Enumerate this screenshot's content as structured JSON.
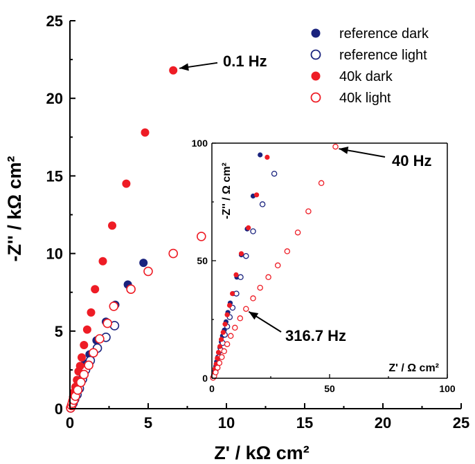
{
  "chart_data": [
    {
      "type": "scatter",
      "xlabel": "Z' / kΩ cm²",
      "ylabel": "-Z'' / kΩ cm²",
      "xlim": [
        0,
        25
      ],
      "ylim": [
        0,
        25
      ],
      "xticks": [
        "0",
        "5",
        "10",
        "15",
        "20",
        "25"
      ],
      "yticks": [
        "0",
        "5",
        "10",
        "15",
        "20",
        "25"
      ],
      "legend_position": "top-right",
      "series": [
        {
          "name": "reference dark",
          "marker": "filled-circle",
          "color": "#1a237e",
          "points": [
            [
              0.05,
              0.05
            ],
            [
              0.1,
              0.15
            ],
            [
              0.15,
              0.3
            ],
            [
              0.2,
              0.45
            ],
            [
              0.3,
              0.7
            ],
            [
              0.4,
              1.0
            ],
            [
              0.5,
              1.4
            ],
            [
              0.6,
              1.8
            ],
            [
              0.75,
              2.3
            ],
            [
              0.95,
              2.9
            ],
            [
              1.25,
              3.5
            ],
            [
              1.7,
              4.4
            ],
            [
              2.3,
              5.6
            ],
            [
              2.9,
              6.7
            ],
            [
              3.7,
              8.0
            ],
            [
              4.7,
              9.4
            ]
          ]
        },
        {
          "name": "reference light",
          "marker": "open-circle",
          "color": "#1a237e",
          "points": [
            [
              0.05,
              0.05
            ],
            [
              0.1,
              0.15
            ],
            [
              0.2,
              0.35
            ],
            [
              0.3,
              0.6
            ],
            [
              0.45,
              0.9
            ],
            [
              0.6,
              1.3
            ],
            [
              0.8,
              1.9
            ],
            [
              1.0,
              2.5
            ],
            [
              1.3,
              3.1
            ],
            [
              1.75,
              3.9
            ],
            [
              2.3,
              4.6
            ],
            [
              2.85,
              5.35
            ]
          ]
        },
        {
          "name": "40k dark",
          "marker": "filled-circle",
          "color": "#ee1c25",
          "points": [
            [
              0.05,
              0.1
            ],
            [
              0.1,
              0.3
            ],
            [
              0.15,
              0.5
            ],
            [
              0.2,
              0.75
            ],
            [
              0.25,
              1.05
            ],
            [
              0.35,
              1.4
            ],
            [
              0.45,
              1.85
            ],
            [
              0.55,
              2.4
            ],
            [
              0.65,
              2.75
            ],
            [
              0.75,
              3.3
            ],
            [
              0.9,
              4.1
            ],
            [
              1.1,
              5.1
            ],
            [
              1.35,
              6.2
            ],
            [
              1.6,
              7.7
            ],
            [
              2.1,
              9.5
            ],
            [
              2.7,
              11.8
            ],
            [
              3.6,
              14.5
            ],
            [
              4.8,
              17.8
            ],
            [
              6.6,
              21.8
            ]
          ]
        },
        {
          "name": "40k light",
          "marker": "open-circle",
          "color": "#ee1c25",
          "points": [
            [
              0.05,
              0.05
            ],
            [
              0.1,
              0.2
            ],
            [
              0.15,
              0.35
            ],
            [
              0.25,
              0.55
            ],
            [
              0.35,
              0.8
            ],
            [
              0.5,
              1.2
            ],
            [
              0.7,
              1.7
            ],
            [
              0.9,
              2.2
            ],
            [
              1.2,
              2.8
            ],
            [
              1.5,
              3.6
            ],
            [
              1.9,
              4.5
            ],
            [
              2.4,
              5.5
            ],
            [
              2.8,
              6.6
            ],
            [
              3.9,
              7.7
            ],
            [
              5.0,
              8.85
            ],
            [
              6.6,
              10.0
            ],
            [
              8.4,
              11.1
            ]
          ]
        }
      ],
      "annotations": [
        {
          "text": "0.1 Hz",
          "point": [
            6.6,
            21.8
          ]
        }
      ]
    },
    {
      "type": "scatter",
      "inset": true,
      "xlabel": "Z' / Ω cm²",
      "ylabel": "-Z'' / Ω cm²",
      "xlim": [
        0,
        100
      ],
      "ylim": [
        0,
        100
      ],
      "xticks": [
        "0",
        "50",
        "100"
      ],
      "yticks": [
        "0",
        "50",
        "100"
      ],
      "series": [
        {
          "name": "reference dark",
          "marker": "filled-circle",
          "color": "#1a237e",
          "points": [
            [
              0.5,
              0.5
            ],
            [
              0.8,
              1.5
            ],
            [
              1.2,
              3
            ],
            [
              1.6,
              5
            ],
            [
              2,
              7
            ],
            [
              2.5,
              9
            ],
            [
              3,
              11
            ],
            [
              3.4,
              13
            ],
            [
              4,
              15.5
            ],
            [
              4.5,
              18
            ],
            [
              5.3,
              20.5
            ],
            [
              6,
              24
            ],
            [
              6.8,
              28
            ],
            [
              7.8,
              32
            ],
            [
              9,
              36
            ],
            [
              10.6,
              43
            ],
            [
              12.5,
              52.5
            ],
            [
              15,
              63.5
            ],
            [
              17.5,
              77.5
            ],
            [
              20.5,
              95
            ]
          ]
        },
        {
          "name": "reference light",
          "marker": "open-circle",
          "color": "#1a237e",
          "points": [
            [
              0.5,
              0.3
            ],
            [
              1,
              1.5
            ],
            [
              1.6,
              3.5
            ],
            [
              2.2,
              6
            ],
            [
              3,
              9
            ],
            [
              3.8,
              12
            ],
            [
              4.6,
              15
            ],
            [
              5.5,
              18.5
            ],
            [
              6.5,
              22
            ],
            [
              7.6,
              26
            ],
            [
              8.8,
              30
            ],
            [
              10.4,
              36
            ],
            [
              12.2,
              43
            ],
            [
              14.5,
              52
            ],
            [
              17.5,
              62.5
            ],
            [
              21.5,
              74
            ],
            [
              26.5,
              87
            ]
          ]
        },
        {
          "name": "40k dark",
          "marker": "filled-circle",
          "color": "#ee1c25",
          "points": [
            [
              0.5,
              0.5
            ],
            [
              0.9,
              2
            ],
            [
              1.3,
              4
            ],
            [
              1.8,
              6
            ],
            [
              2.3,
              8.5
            ],
            [
              2.8,
              11
            ],
            [
              3.4,
              13.5
            ],
            [
              4,
              16.5
            ],
            [
              4.8,
              19.5
            ],
            [
              5.6,
              23
            ],
            [
              6.5,
              27
            ],
            [
              7.5,
              31
            ],
            [
              8.7,
              36
            ],
            [
              10.3,
              44
            ],
            [
              12.5,
              53
            ],
            [
              15.5,
              64
            ],
            [
              19,
              78
            ],
            [
              23.5,
              94
            ]
          ]
        },
        {
          "name": "40k light",
          "marker": "open-circle",
          "color": "#ee1c25",
          "points": [
            [
              0.5,
              0.2
            ],
            [
              1,
              1
            ],
            [
              1.6,
              2.5
            ],
            [
              2.4,
              4.5
            ],
            [
              3.2,
              6.5
            ],
            [
              4.2,
              9
            ],
            [
              5.2,
              11.5
            ],
            [
              6.5,
              14.5
            ],
            [
              8,
              18
            ],
            [
              9.8,
              21.5
            ],
            [
              12,
              25.5
            ],
            [
              14.5,
              29.5
            ],
            [
              17.5,
              34
            ],
            [
              20.5,
              38.5
            ],
            [
              24,
              43
            ],
            [
              28,
              48
            ],
            [
              32,
              54
            ],
            [
              36.5,
              62
            ],
            [
              41,
              71
            ],
            [
              46.5,
              83
            ],
            [
              52.5,
              98.5
            ]
          ]
        }
      ],
      "annotations": [
        {
          "text": "40 Hz",
          "point": [
            52.5,
            98.5
          ]
        },
        {
          "text": "316.7 Hz",
          "point": [
            14.5,
            29.5
          ]
        }
      ]
    }
  ]
}
